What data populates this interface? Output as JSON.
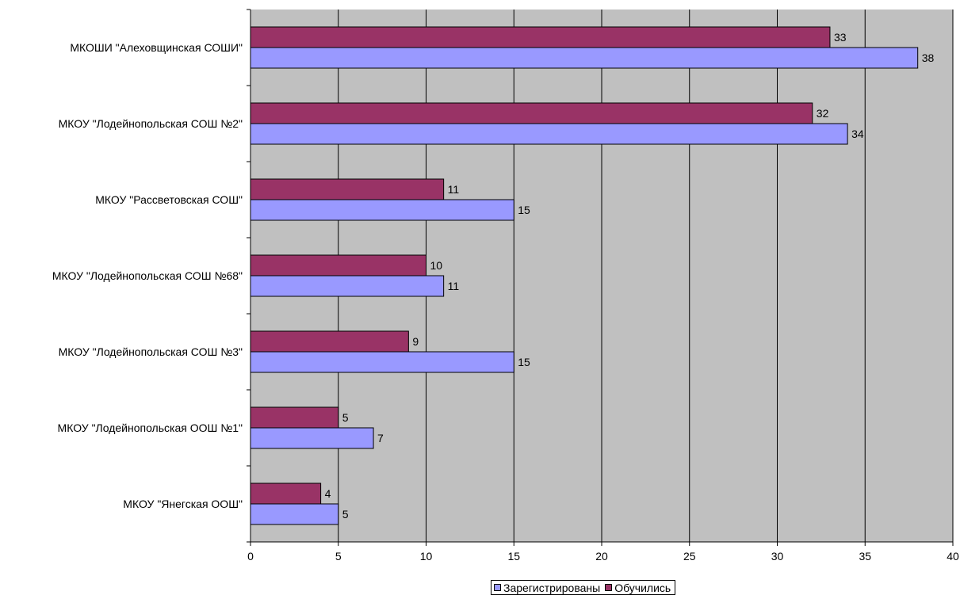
{
  "chart_data": {
    "type": "bar",
    "orientation": "horizontal",
    "categories": [
      "МКОШИ \"Алеховщинская СОШИ\"",
      "МКОУ \"Лодейнопольская СОШ №2\"",
      "МКОУ \"Рассветовская СОШ\"",
      "МКОУ \"Лодейнопольская СОШ №68\"",
      "МКОУ \"Лодейнопольская СОШ №3\"",
      "МКОУ \"Лодейнопольская ООШ №1\"",
      "МКОУ \"Янегская ООШ\""
    ],
    "series": [
      {
        "name": "Обучились",
        "color": "#993366",
        "values": [
          33,
          32,
          11,
          10,
          9,
          5,
          4
        ]
      },
      {
        "name": "Зарегистрированы",
        "color": "#9999ff",
        "values": [
          38,
          34,
          15,
          11,
          15,
          7,
          5
        ]
      }
    ],
    "xlim": [
      0,
      40
    ],
    "x_ticks": [
      "0",
      "5",
      "10",
      "15",
      "20",
      "25",
      "30",
      "35",
      "40"
    ],
    "grid": "vertical",
    "plot_background": "#c0c0c0",
    "legend": {
      "position": "bottom-center",
      "items": [
        {
          "name": "Зарегистрированы",
          "color": "#9999ff"
        },
        {
          "name": "Обучились",
          "color": "#993366"
        }
      ]
    }
  }
}
